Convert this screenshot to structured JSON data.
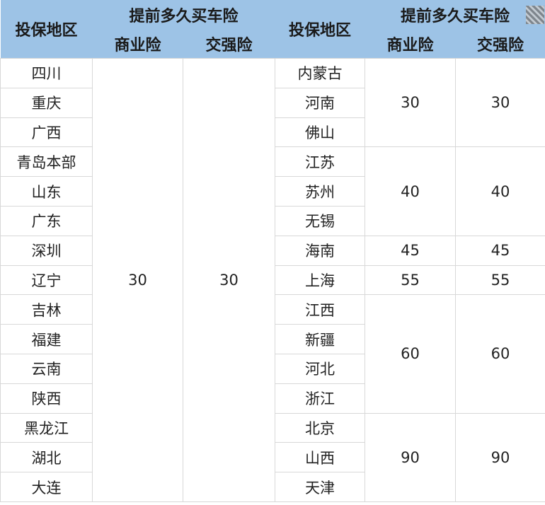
{
  "header": {
    "region_label": "投保地区",
    "advance_label": "提前多久买车险",
    "commercial_label": "商业险",
    "compulsory_label": "交强险",
    "corner_icon": "qr-code-icon",
    "header_color": "#9dc3e6"
  },
  "left": {
    "regions": [
      "四川",
      "重庆",
      "广西",
      "青岛本部",
      "山东",
      "广东",
      "深圳",
      "辽宁",
      "吉林",
      "福建",
      "云南",
      "陕西",
      "黑龙江",
      "湖北",
      "大连"
    ],
    "commercial": "30",
    "compulsory": "30"
  },
  "right": {
    "groups": [
      {
        "regions": [
          "内蒙古",
          "河南",
          "佛山"
        ],
        "commercial": "30",
        "compulsory": "30"
      },
      {
        "regions": [
          "江苏",
          "苏州",
          "无锡"
        ],
        "commercial": "40",
        "compulsory": "40"
      },
      {
        "regions": [
          "海南"
        ],
        "commercial": "45",
        "compulsory": "45"
      },
      {
        "regions": [
          "上海"
        ],
        "commercial": "55",
        "compulsory": "55"
      },
      {
        "regions": [
          "江西",
          "新疆",
          "河北",
          "浙江"
        ],
        "commercial": "60",
        "compulsory": "60"
      },
      {
        "regions": [
          "北京",
          "山西",
          "天津"
        ],
        "commercial": "90",
        "compulsory": "90"
      }
    ]
  }
}
